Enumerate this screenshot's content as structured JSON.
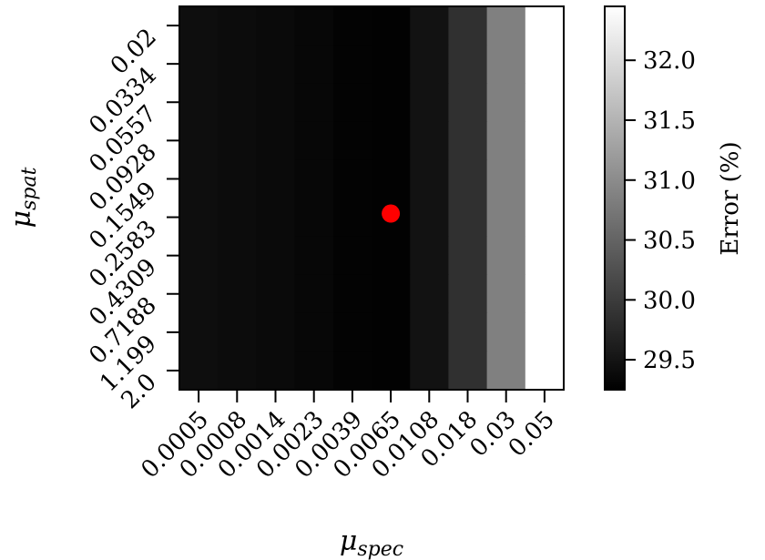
{
  "chart_data": {
    "type": "heatmap",
    "x_ticks": [
      "0.0005",
      "0.0008",
      "0.0014",
      "0.0023",
      "0.0039",
      "0.0065",
      "0.0108",
      "0.018",
      "0.03",
      "0.05"
    ],
    "y_ticks": [
      "0.02",
      "0.0334",
      "0.0557",
      "0.0928",
      "0.1549",
      "0.2583",
      "0.4309",
      "0.7188",
      "1.199",
      "2.0"
    ],
    "xlabel_main": "μ",
    "xlabel_sub": "spec",
    "ylabel_main": "μ",
    "ylabel_sub": "spat",
    "colorbar_label": "Error (%)",
    "colorbar_ticks": [
      "29.5",
      "30.0",
      "30.5",
      "31.0",
      "31.5",
      "32.0"
    ],
    "colorbar_tick_values": [
      29.5,
      30.0,
      30.5,
      31.0,
      31.5,
      32.0
    ],
    "vmin": 29.25,
    "vmax": 32.45,
    "colormap": "gray",
    "column_values": [
      29.42,
      29.4,
      29.38,
      29.34,
      29.29,
      29.27,
      29.48,
      29.85,
      30.85,
      32.45
    ],
    "highlight_point": {
      "x_index": 5,
      "y_index": 5,
      "color": "#ff0000"
    }
  }
}
